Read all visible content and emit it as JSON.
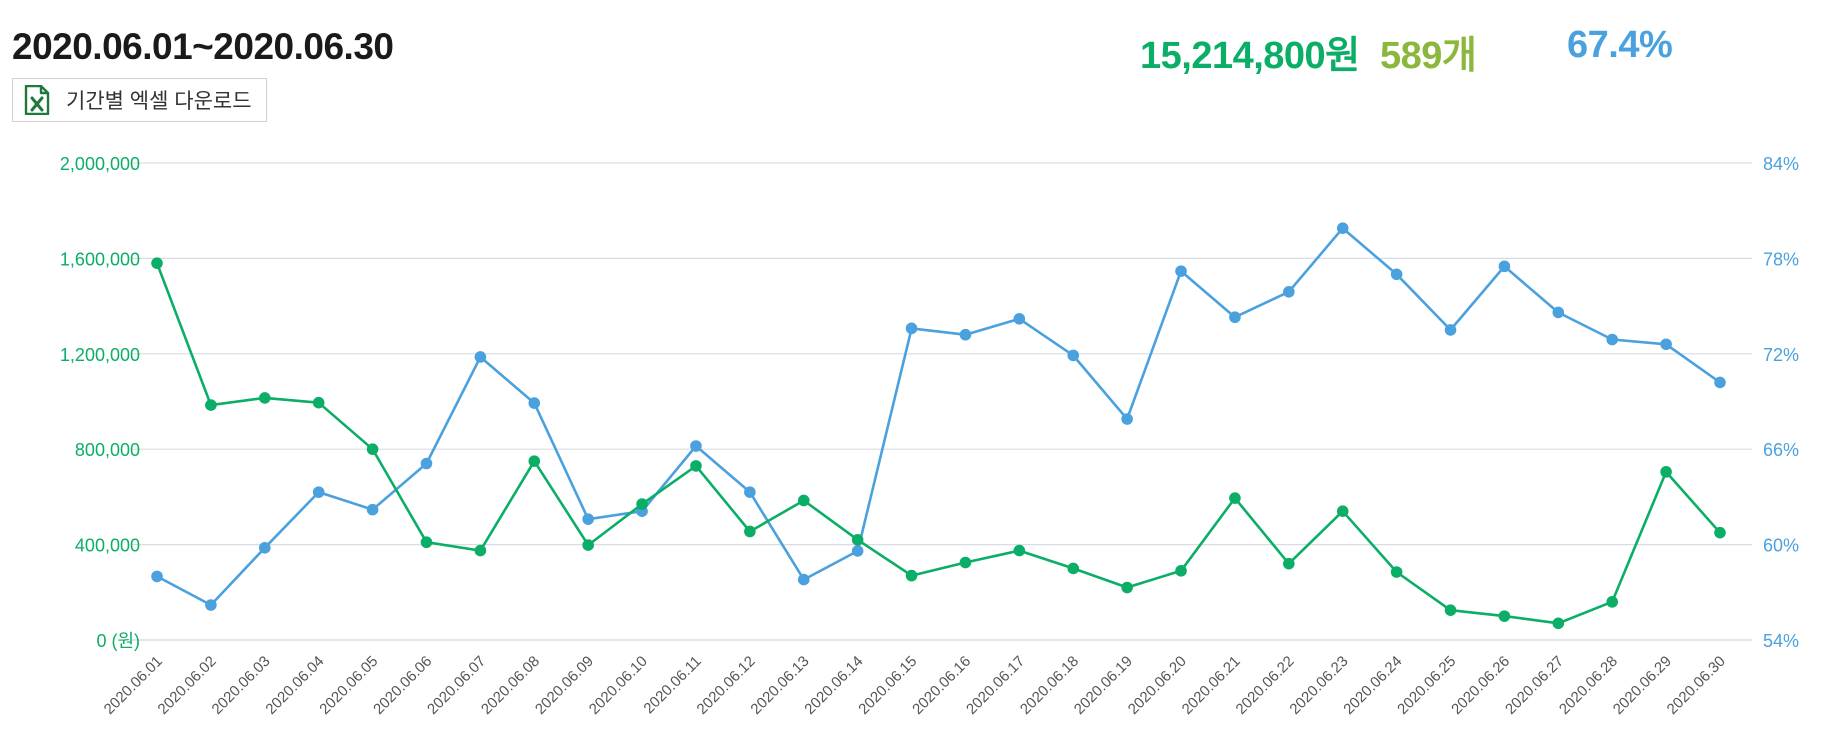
{
  "header": {
    "date_range": "2020.06.01~2020.06.30",
    "excel_button_label": "기간별 엑셀 다운로드",
    "excel_icon": "excel-file-icon"
  },
  "summary": {
    "sales": "15,214,800원",
    "count": "589개",
    "rate": "67.4%"
  },
  "colors": {
    "sales": "#0bae66",
    "count": "#8cb73d",
    "rate": "#4aa1dd",
    "grid": "#d9dde3",
    "excel": "#1f7a3a"
  },
  "chart_data": {
    "type": "line",
    "categories": [
      "2020.06.01",
      "2020.06.02",
      "2020.06.03",
      "2020.06.04",
      "2020.06.05",
      "2020.06.06",
      "2020.06.07",
      "2020.06.08",
      "2020.06.09",
      "2020.06.10",
      "2020.06.11",
      "2020.06.12",
      "2020.06.13",
      "2020.06.14",
      "2020.06.15",
      "2020.06.16",
      "2020.06.17",
      "2020.06.18",
      "2020.06.19",
      "2020.06.20",
      "2020.06.21",
      "2020.06.22",
      "2020.06.23",
      "2020.06.24",
      "2020.06.25",
      "2020.06.26",
      "2020.06.27",
      "2020.06.28",
      "2020.06.29",
      "2020.06.30"
    ],
    "series": [
      {
        "axis": "left",
        "values": [
          1580000,
          985000,
          1015000,
          995000,
          800000,
          410000,
          375000,
          750000,
          398000,
          570000,
          730000,
          455000,
          585000,
          420000,
          270000,
          325000,
          375000,
          300000,
          220000,
          290000,
          595000,
          320000,
          540000,
          285000,
          125000,
          100000,
          70000,
          160000,
          705000,
          450000
        ]
      },
      {
        "axis": "right",
        "values": [
          58.0,
          56.2,
          59.8,
          63.3,
          62.2,
          65.1,
          71.8,
          68.9,
          61.6,
          62.1,
          66.2,
          63.3,
          57.8,
          59.6,
          73.6,
          73.2,
          74.2,
          71.9,
          67.9,
          77.2,
          74.3,
          75.9,
          79.9,
          77.0,
          73.5,
          77.5,
          74.6,
          72.9,
          72.6,
          70.2
        ]
      }
    ],
    "left_axis": {
      "ticks": [
        "0 (원)",
        "400,000",
        "800,000",
        "1,200,000",
        "1,600,000",
        "2,000,000"
      ],
      "ylim": [
        0,
        2000000
      ]
    },
    "right_axis": {
      "ticks": [
        "54%",
        "60%",
        "66%",
        "72%",
        "78%",
        "84%"
      ],
      "ylim": [
        54,
        84
      ]
    },
    "grid": true
  }
}
